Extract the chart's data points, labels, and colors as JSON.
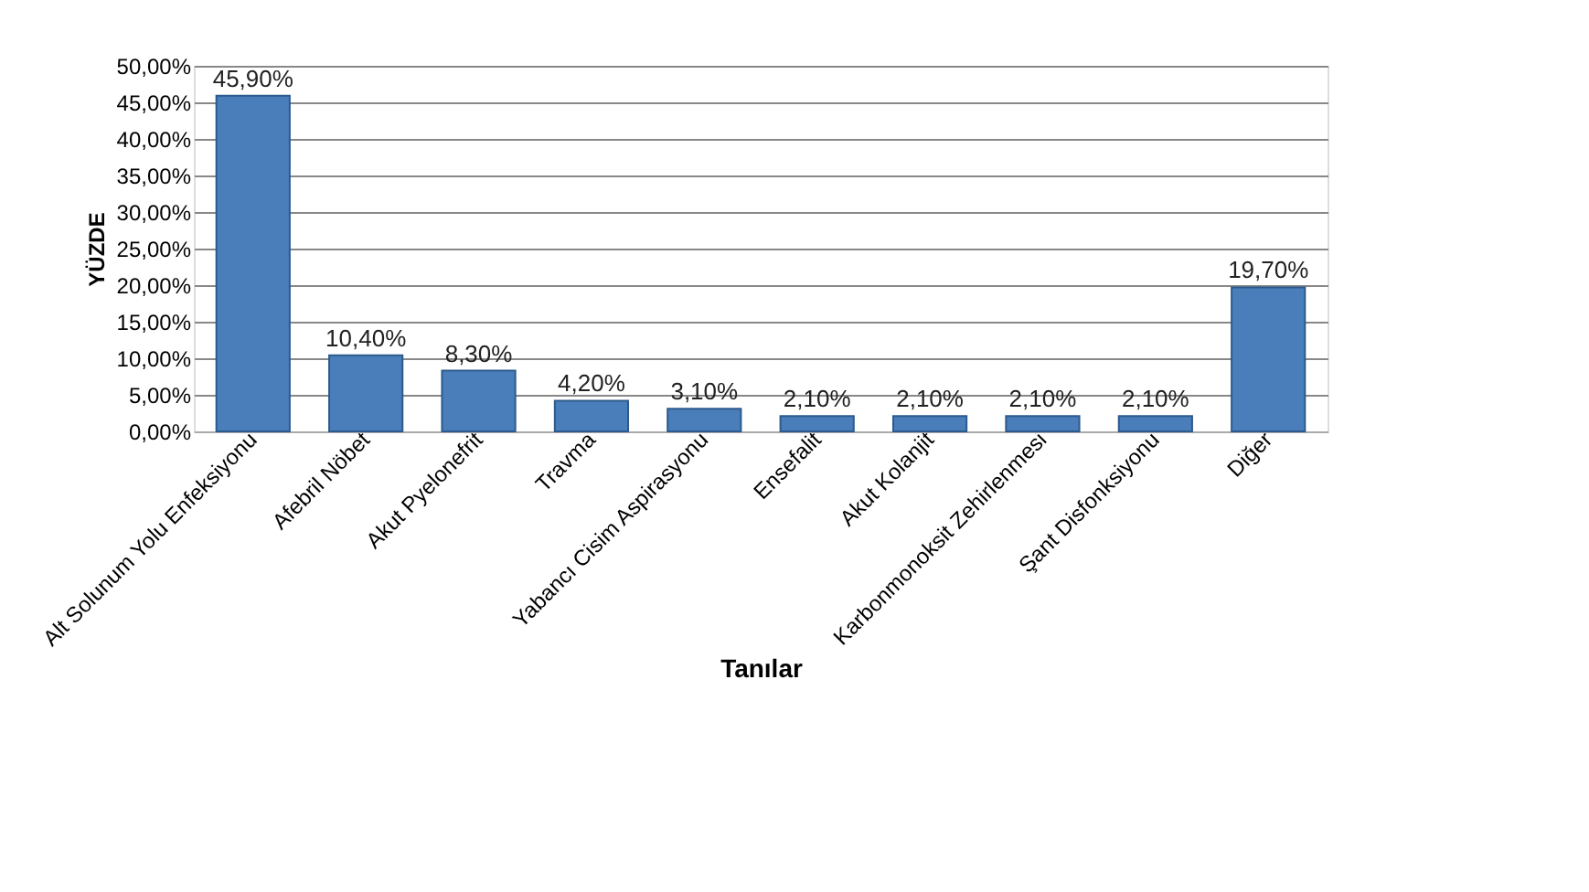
{
  "chart_data": {
    "type": "bar",
    "xlabel": "Tanılar",
    "ylabel": "YÜZDE",
    "categories": [
      "Alt Solunum Yolu Enfeksiyonu",
      "Afebril Nöbet",
      "Akut Pyelonefrit",
      "Travma",
      "Yabancı Cisim Aspirasyonu",
      "Ensefalit",
      "Akut Kolanjit",
      "Karbonmonoksit Zehirlenmesi",
      "Şant Disfonksiyonu",
      "Diğer"
    ],
    "values": [
      45.9,
      10.4,
      8.3,
      4.2,
      3.1,
      2.1,
      2.1,
      2.1,
      2.1,
      19.7
    ],
    "value_labels": [
      "45,90%",
      "10,40%",
      "8,30%",
      "4,20%",
      "3,10%",
      "2,10%",
      "2,10%",
      "2,10%",
      "2,10%",
      "19,70%"
    ],
    "color": "#4a7ebb",
    "ylim": [
      0,
      50
    ],
    "yticks": [
      {
        "value": 0,
        "label": "0,00%"
      },
      {
        "value": 5,
        "label": "5,00%"
      },
      {
        "value": 10,
        "label": "10,00%"
      },
      {
        "value": 15,
        "label": "15,00%"
      },
      {
        "value": 20,
        "label": "20,00%"
      },
      {
        "value": 25,
        "label": "25,00%"
      },
      {
        "value": 30,
        "label": "30,00%"
      },
      {
        "value": 35,
        "label": "35,00%"
      },
      {
        "value": 40,
        "label": "40,00%"
      },
      {
        "value": 45,
        "label": "45,00%"
      },
      {
        "value": 50,
        "label": "50,00%"
      }
    ],
    "grid": "y"
  }
}
